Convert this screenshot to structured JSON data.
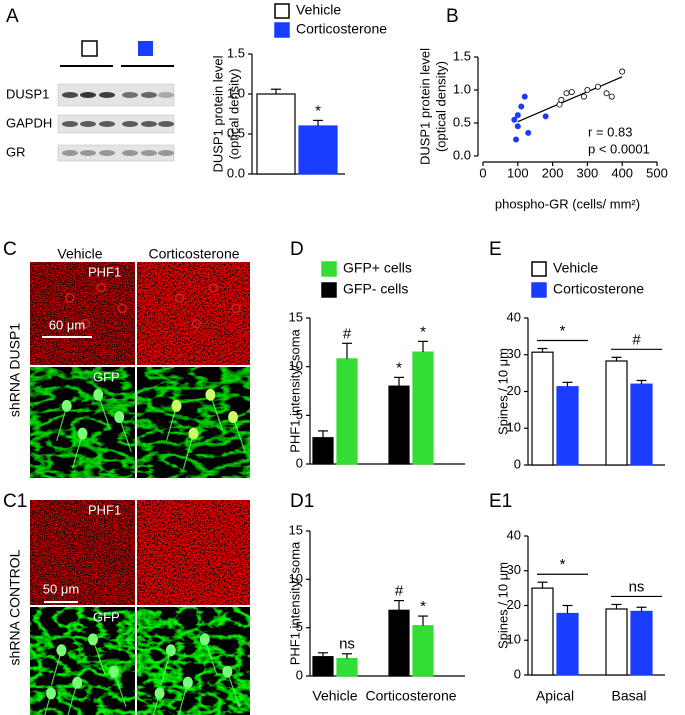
{
  "figure": {
    "panel_labels": [
      "A",
      "B",
      "C",
      "D",
      "E",
      "C1",
      "D1",
      "E1"
    ],
    "blot_labels": [
      "DUSP1",
      "GAPDH",
      "GR"
    ],
    "micrographs": {
      "columns": [
        "Vehicle",
        "Corticosterone"
      ],
      "rows": [
        {
          "condition": "shRNA DUSP1",
          "top_stain": "PHF1",
          "bottom_stain": "GFP",
          "scale_bar": "60 μm"
        },
        {
          "condition": "shRNA CONTROL",
          "top_stain": "PHF1",
          "bottom_stain": "GFP",
          "scale_bar": "50 μm"
        }
      ]
    }
  },
  "chart_data": [
    {
      "type": "bar",
      "y_label": [
        "DUSP1 protein level",
        "(optical density)"
      ],
      "categories": [
        null
      ],
      "series": [
        {
          "name": "Vehicle",
          "color": "#ffffff",
          "values": [
            1.0
          ],
          "errors": [
            0.06
          ],
          "labels": [
            null
          ]
        },
        {
          "name": "Corticosterone",
          "color": "#1a3cff",
          "values": [
            0.6
          ],
          "errors": [
            0.07
          ],
          "labels": [
            "*"
          ]
        }
      ],
      "ylim": [
        0,
        1.5
      ],
      "yticks": [
        {
          "value": 0,
          "label": "0.0"
        },
        0.5,
        {
          "value": 1,
          "label": "1.0"
        },
        1.5
      ]
    },
    {
      "type": "scatter",
      "x_label": "phospho-GR (cells/ mm²)",
      "y_label": [
        "DUSP1 protein level",
        "(optical density)"
      ],
      "series": [
        {
          "color": "#ffffff",
          "x": [
            220,
            225,
            240,
            255,
            290,
            300,
            330,
            355,
            370,
            400
          ],
          "values": [
            0.78,
            0.85,
            0.95,
            0.97,
            0.9,
            1.0,
            1.05,
            0.95,
            0.9,
            1.28
          ]
        },
        {
          "color": "#1a3cff",
          "x": [
            95,
            120,
            100,
            110,
            100,
            130,
            180,
            90
          ],
          "values": [
            0.25,
            0.9,
            0.62,
            0.75,
            0.45,
            0.35,
            0.6,
            0.55
          ]
        }
      ],
      "fit": {
        "x": [
          100,
          400
        ],
        "values": [
          0.52,
          1.2
        ]
      },
      "annotations": [
        "r = 0.83",
        "p < 0.0001"
      ],
      "xlim": [
        0,
        500
      ],
      "xticks": [
        0,
        100,
        200,
        300,
        400,
        500
      ],
      "ylim": [
        0,
        1.5
      ],
      "yticks": [
        {
          "value": 0,
          "label": "0.0"
        },
        0.5,
        {
          "value": 1,
          "label": "1.0"
        },
        1.5
      ]
    },
    {
      "type": "bar",
      "y_label": [
        "PHF1 intensity/ soma"
      ],
      "categories": [
        null,
        null
      ],
      "series": [
        {
          "name": "GFP+ cells",
          "color": "#33dd33",
          "values": [
            10.8,
            11.5
          ],
          "errors": [
            1.6,
            1.1
          ],
          "labels": [
            "#",
            "*"
          ]
        },
        {
          "name": "GFP- cells",
          "color": "#000000",
          "values": [
            2.7,
            8.0
          ],
          "errors": [
            0.7,
            0.9
          ],
          "labels": [
            null,
            "*"
          ]
        }
      ],
      "ylim": [
        0,
        15
      ],
      "yticks": [
        0,
        5,
        10,
        15
      ]
    },
    {
      "type": "bar",
      "y_label": [
        "Spines / 10 μm"
      ],
      "categories": [
        null,
        null
      ],
      "series": [
        {
          "name": "Vehicle",
          "color": "#ffffff",
          "values": [
            30.7,
            28.3
          ],
          "errors": [
            1.0,
            1.0
          ]
        },
        {
          "name": "Corticosterone",
          "color": "#1a3cff",
          "values": [
            21.3,
            22.0
          ],
          "errors": [
            1.2,
            1.0
          ]
        }
      ],
      "brackets": [
        "*",
        "#"
      ],
      "ylim": [
        0,
        40
      ],
      "yticks": [
        0,
        10,
        20,
        30,
        40
      ]
    },
    {
      "type": "bar",
      "y_label": [
        "PHF1 intensity/ soma"
      ],
      "categories": [
        "Vehicle",
        "Corticosterone"
      ],
      "series": [
        {
          "color": "#33dd33",
          "values": [
            1.8,
            5.2
          ],
          "errors": [
            0.5,
            1.0
          ],
          "labels": [
            "ns",
            "*"
          ]
        },
        {
          "color": "#000000",
          "values": [
            2.0,
            6.8
          ],
          "errors": [
            0.4,
            1.0
          ],
          "labels": [
            null,
            "#"
          ]
        }
      ],
      "ylim": [
        0,
        15
      ],
      "yticks": [
        0,
        5,
        10,
        15
      ]
    },
    {
      "type": "bar",
      "y_label": [
        "Spines / 10 μm"
      ],
      "categories": [
        "Apical",
        "Basal"
      ],
      "series": [
        {
          "color": "#ffffff",
          "values": [
            25.0,
            19.0
          ],
          "errors": [
            1.7,
            1.3
          ]
        },
        {
          "color": "#1a3cff",
          "values": [
            17.7,
            18.3
          ],
          "errors": [
            2.3,
            1.2
          ]
        }
      ],
      "brackets": [
        "*",
        "ns"
      ],
      "ylim": [
        0,
        40
      ],
      "yticks": [
        0,
        10,
        20,
        30,
        40
      ]
    }
  ]
}
